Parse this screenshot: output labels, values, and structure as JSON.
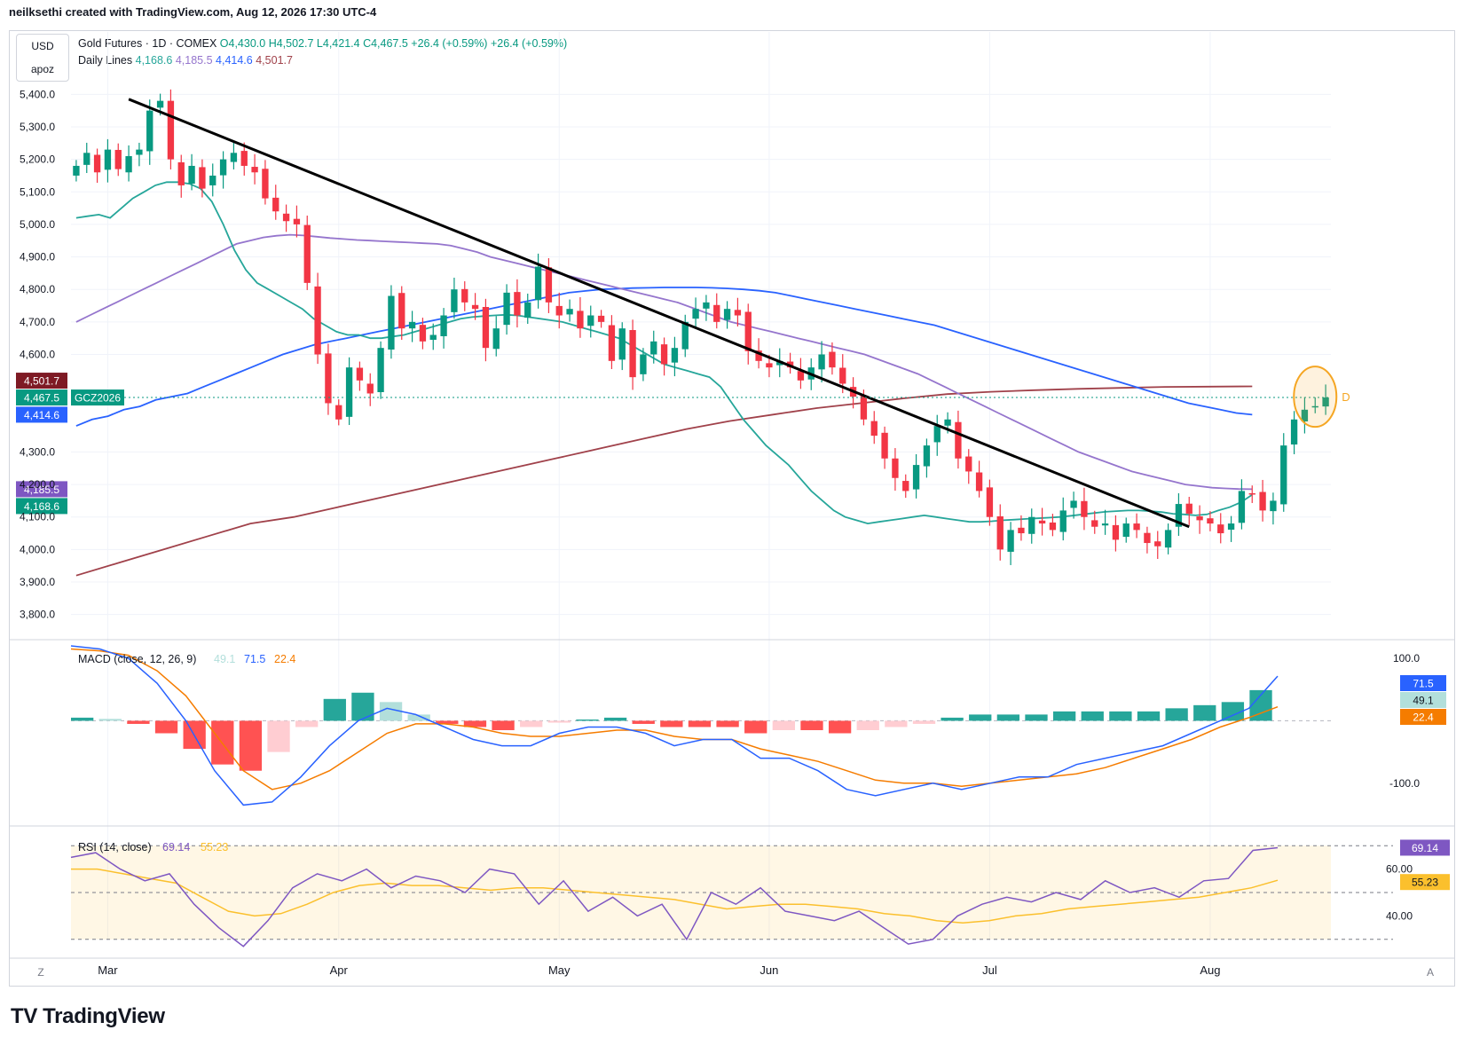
{
  "header": "neilksethi created with TradingView.com, Aug 12, 2026 17:30 UTC-4",
  "scale_box": {
    "currency": "USD",
    "mode": "apoz"
  },
  "legend": {
    "title": "Gold Futures · 1D · COMEX",
    "open": "O4,430.0",
    "high": "H4,502.7",
    "low": "L4,421.4",
    "close": "C4,467.5",
    "change1": "+26.4 (+0.59%)",
    "change2": "+26.4 (+0.59%)",
    "lines_title": "Daily Lines",
    "lines": [
      {
        "text": "4,168.6",
        "color": "#26a69a"
      },
      {
        "text": "4,185.5",
        "color": "#9575cd"
      },
      {
        "text": "4,414.6",
        "color": "#2962ff"
      },
      {
        "text": "4,501.7",
        "color": "#a0414a"
      }
    ]
  },
  "price_labels": [
    {
      "text": "4,501.7",
      "value": 4501.7,
      "color": "#7e1a24"
    },
    {
      "text": "4,467.5",
      "value": 4467.5,
      "color": "#089981"
    },
    {
      "text": "4,414.6",
      "value": 4414.6,
      "color": "#2962ff"
    },
    {
      "text": "4,185.5",
      "value": 4185.5,
      "color": "#7e57c2"
    },
    {
      "text": "4,168.6",
      "value": 4168.6,
      "color": "#089981"
    }
  ],
  "symbol_tag": "GCZ2026",
  "macd_legend": {
    "title": "MACD (close, 12, 26, 9)",
    "hist": "49.1",
    "macd": "71.5",
    "signal": "22.4"
  },
  "macd_labels": [
    {
      "text": "71.5",
      "value": 71.5,
      "color": "#2962ff"
    },
    {
      "text": "49.1",
      "value": 49.1,
      "color": "#b2dfdb"
    },
    {
      "text": "22.4",
      "value": 22.4,
      "color": "#f57c00"
    }
  ],
  "rsi_legend": {
    "title": "RSI (14, close)",
    "rsi": "69.14",
    "ma": "55.23"
  },
  "rsi_labels": [
    {
      "text": "69.14",
      "value": 69.14,
      "color": "#7e57c2"
    },
    {
      "text": "55.23",
      "value": 55.23,
      "color": "#fbc02d"
    }
  ],
  "d_marker": "D",
  "bottom_left": "Z",
  "bottom_right": "A",
  "brand": {
    "logo": "TV",
    "name": "TradingView"
  },
  "colors": {
    "up": "#089981",
    "down": "#f23645",
    "ma20": "#26a69a",
    "ma50": "#9575cd",
    "ma100": "#2962ff",
    "ma200": "#a0414a",
    "macd": "#2962ff",
    "signal": "#f57c00",
    "rsi": "#7e57c2",
    "rsi_ma": "#fbc02d",
    "circle": "#f5a623"
  },
  "chart_data": {
    "type": "candlestick",
    "title": "Gold Futures · 1D · COMEX",
    "x_labels": [
      {
        "text": "Mar",
        "bar": 3
      },
      {
        "text": "Apr",
        "bar": 25
      },
      {
        "text": "May",
        "bar": 46
      },
      {
        "text": "Jun",
        "bar": 66
      },
      {
        "text": "Jul",
        "bar": 87
      },
      {
        "text": "Aug",
        "bar": 108
      }
    ],
    "y_ticks": [
      "5,400.0",
      "5,300.0",
      "5,200.0",
      "5,100.0",
      "5,000.0",
      "4,900.0",
      "4,800.0",
      "4,700.0",
      "4,600.0",
      "4,300.0",
      "4,200.0",
      "4,100.0",
      "4,000.0",
      "3,900.0",
      "3,800.0"
    ],
    "ylim": [
      3780,
      5450
    ],
    "bars": 120,
    "close": [
      5180,
      5220,
      5160,
      5230,
      5170,
      5210,
      5230,
      5350,
      5380,
      5200,
      5120,
      5180,
      5110,
      5150,
      5200,
      5220,
      5180,
      5160,
      5080,
      5040,
      5010,
      5000,
      4820,
      4600,
      4450,
      4400,
      4560,
      4520,
      4480,
      4620,
      4780,
      4680,
      4700,
      4640,
      4660,
      4720,
      4800,
      4760,
      4740,
      4620,
      4680,
      4790,
      4720,
      4760,
      4870,
      4760,
      4720,
      4740,
      4680,
      4720,
      4700,
      4580,
      4680,
      4530,
      4600,
      4640,
      4570,
      4620,
      4700,
      4740,
      4760,
      4700,
      4740,
      4720,
      4610,
      4580,
      4560,
      4580,
      4560,
      4520,
      4560,
      4600,
      4560,
      4510,
      4470,
      4400,
      4350,
      4280,
      4220,
      4180,
      4260,
      4320,
      4380,
      4400,
      4280,
      4240,
      4180,
      4100,
      4000,
      4060,
      4050,
      4100,
      4080,
      4060,
      4120,
      4150,
      4100,
      4070,
      4080,
      4030,
      4080,
      4060,
      4020,
      4010,
      4060,
      4140,
      4110,
      4090,
      4080,
      4050,
      4080,
      4180,
      4170,
      4120,
      4150,
      4320,
      4400,
      4430,
      4441,
      4467.5
    ],
    "ma20": [
      5020,
      5025,
      5030,
      5020,
      5050,
      5080,
      5100,
      5120,
      5130,
      5130,
      5125,
      5110,
      5070,
      5000,
      4920,
      4860,
      4820,
      4800,
      4780,
      4760,
      4740,
      4710,
      4690,
      4670,
      4660,
      4660,
      4650,
      4650,
      4655,
      4660,
      4670,
      4680,
      4690,
      4700,
      4710,
      4715,
      4718,
      4720,
      4722,
      4720,
      4715,
      4710,
      4705,
      4700,
      4690,
      4680,
      4670,
      4660,
      4650,
      4630,
      4610,
      4590,
      4570,
      4560,
      4550,
      4540,
      4530,
      4500,
      4450,
      4400,
      4360,
      4320,
      4290,
      4260,
      4220,
      4180,
      4150,
      4120,
      4100,
      4090,
      4080,
      4085,
      4090,
      4095,
      4100,
      4105,
      4100,
      4095,
      4090,
      4085,
      4085,
      4087,
      4090,
      4092,
      4094,
      4096,
      4098,
      4100,
      4104,
      4108,
      4112,
      4116,
      4118,
      4120,
      4120,
      4118,
      4115,
      4110,
      4108,
      4105,
      4108,
      4120,
      4130,
      4145,
      4168.6
    ],
    "ma50": [
      4700,
      4720,
      4740,
      4760,
      4780,
      4800,
      4820,
      4840,
      4860,
      4880,
      4900,
      4920,
      4940,
      4950,
      4960,
      4965,
      4968,
      4966,
      4962,
      4958,
      4955,
      4952,
      4950,
      4948,
      4946,
      4944,
      4942,
      4940,
      4935,
      4925,
      4915,
      4900,
      4890,
      4880,
      4870,
      4860,
      4850,
      4840,
      4830,
      4820,
      4810,
      4800,
      4790,
      4780,
      4770,
      4760,
      4745,
      4730,
      4715,
      4700,
      4690,
      4680,
      4670,
      4660,
      4650,
      4640,
      4630,
      4620,
      4610,
      4600,
      4585,
      4570,
      4555,
      4540,
      4520,
      4500,
      4480,
      4460,
      4440,
      4420,
      4400,
      4380,
      4360,
      4340,
      4320,
      4300,
      4285,
      4270,
      4255,
      4240,
      4230,
      4220,
      4210,
      4200,
      4195,
      4190,
      4188,
      4186,
      4185.5
    ],
    "ma100": [
      4380,
      4400,
      4410,
      4430,
      4440,
      4460,
      4470,
      4480,
      4500,
      4520,
      4540,
      4560,
      4580,
      4600,
      4615,
      4630,
      4640,
      4650,
      4660,
      4670,
      4680,
      4690,
      4700,
      4710,
      4720,
      4730,
      4740,
      4750,
      4760,
      4770,
      4780,
      4790,
      4795,
      4800,
      4802,
      4804,
      4805,
      4806,
      4806,
      4806,
      4805,
      4803,
      4800,
      4796,
      4790,
      4780,
      4770,
      4760,
      4750,
      4740,
      4730,
      4720,
      4710,
      4700,
      4690,
      4675,
      4660,
      4645,
      4630,
      4615,
      4600,
      4585,
      4570,
      4555,
      4540,
      4525,
      4510,
      4495,
      4480,
      4465,
      4450,
      4440,
      4430,
      4420,
      4414.6
    ],
    "ma200": [
      3920,
      3960,
      4000,
      4040,
      4080,
      4100,
      4130,
      4160,
      4190,
      4220,
      4250,
      4280,
      4310,
      4340,
      4370,
      4395,
      4415,
      4435,
      4450,
      4465,
      4478,
      4485,
      4490,
      4494,
      4497,
      4500,
      4501,
      4501.7
    ],
    "trendline": [
      {
        "bar": 5,
        "price": 5385
      },
      {
        "bar": 106,
        "price": 4070
      }
    ],
    "macd": {
      "yticks": [
        "100.0",
        "0.0",
        "-100.0"
      ],
      "ylim": [
        -160,
        120
      ],
      "macd": [
        120,
        115,
        100,
        60,
        0,
        -80,
        -135,
        -130,
        -90,
        -40,
        0,
        20,
        10,
        -10,
        -30,
        -40,
        -40,
        -20,
        -10,
        -10,
        -20,
        -40,
        -30,
        -30,
        -60,
        -60,
        -80,
        -110,
        -120,
        -110,
        -100,
        -110,
        -100,
        -90,
        -90,
        -70,
        -60,
        -50,
        -40,
        -20,
        0,
        20,
        71.5
      ],
      "signal": [
        115,
        112,
        105,
        80,
        40,
        -20,
        -80,
        -110,
        -100,
        -80,
        -50,
        -20,
        -5,
        -5,
        -10,
        -20,
        -25,
        -25,
        -20,
        -15,
        -15,
        -25,
        -30,
        -30,
        -45,
        -55,
        -65,
        -80,
        -95,
        -100,
        -100,
        -105,
        -100,
        -95,
        -90,
        -85,
        -75,
        -60,
        -45,
        -30,
        -10,
        5,
        22.4
      ],
      "hist": [
        5,
        3,
        -5,
        -20,
        -45,
        -70,
        -80,
        -50,
        -10,
        35,
        45,
        30,
        10,
        -5,
        -10,
        -15,
        -10,
        -3,
        2,
        5,
        -5,
        -10,
        -10,
        -10,
        -20,
        -15,
        -15,
        -20,
        -15,
        -10,
        -5,
        5,
        10,
        10,
        10,
        15,
        15,
        15,
        15,
        20,
        25,
        30,
        49.1
      ]
    },
    "rsi": {
      "yticks": [
        "60.00",
        "40.00"
      ],
      "levels": [
        70,
        50,
        30
      ],
      "ylim": [
        25,
        75
      ],
      "rsi": [
        65,
        67,
        60,
        55,
        58,
        45,
        35,
        27,
        38,
        52,
        58,
        55,
        60,
        52,
        57,
        55,
        50,
        60,
        58,
        45,
        55,
        42,
        48,
        40,
        45,
        30,
        50,
        45,
        52,
        42,
        40,
        38,
        42,
        35,
        28,
        30,
        40,
        45,
        48,
        46,
        50,
        47,
        55,
        50,
        52,
        48,
        55,
        56,
        68,
        69.14
      ],
      "rsi_ma": [
        60,
        60,
        58,
        56,
        54,
        48,
        42,
        40,
        41,
        45,
        50,
        53,
        54,
        53,
        53,
        52,
        51,
        52,
        52,
        51,
        50,
        49,
        48,
        47,
        45,
        43,
        44,
        45,
        45,
        44,
        43,
        41,
        40,
        38,
        37,
        38,
        40,
        41,
        43,
        44,
        45,
        46,
        47,
        48,
        50,
        52,
        55.23
      ]
    }
  }
}
